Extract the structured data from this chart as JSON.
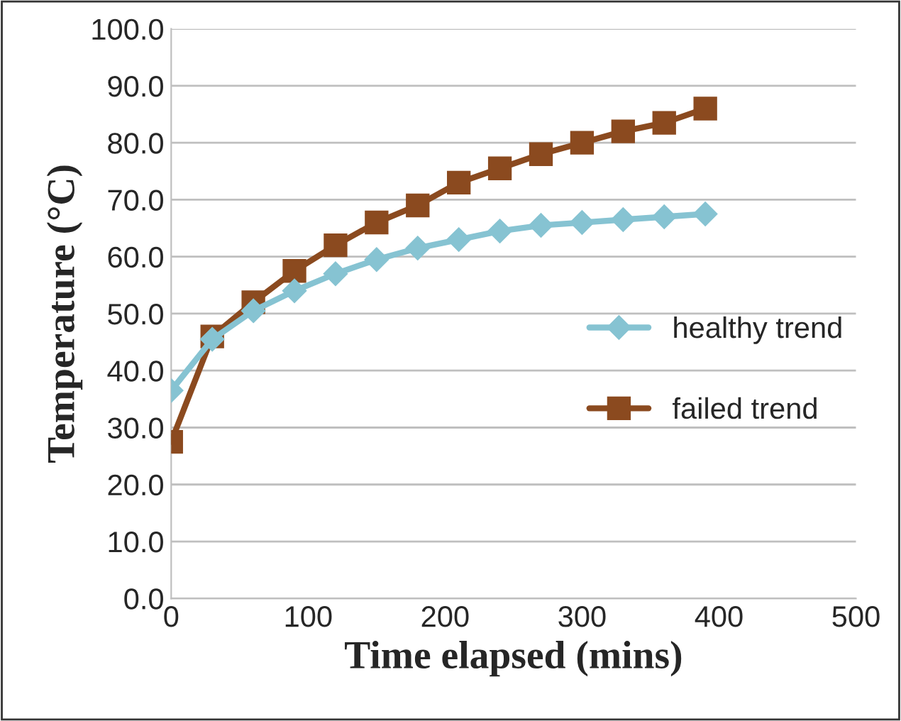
{
  "chart_data": {
    "type": "line",
    "xlabel": "Time elapsed (mins)",
    "ylabel": "Temperature (°C)",
    "xlim": [
      0,
      500
    ],
    "xticks": [
      0,
      100,
      200,
      300,
      400,
      500
    ],
    "ylim": [
      0,
      100
    ],
    "yticks": [
      {
        "value": 0,
        "label": "0.0"
      },
      {
        "value": 10,
        "label": "10.0"
      },
      {
        "value": 20,
        "label": "20.0"
      },
      {
        "value": 30,
        "label": "30.0"
      },
      {
        "value": 40,
        "label": "40.0"
      },
      {
        "value": 50,
        "label": "50.0"
      },
      {
        "value": 60,
        "label": "60.0"
      },
      {
        "value": 70,
        "label": "70.0"
      },
      {
        "value": 80,
        "label": "80.0"
      },
      {
        "value": 90,
        "label": "90.0"
      },
      {
        "value": 100,
        "label": "100.0"
      }
    ],
    "grid": "y",
    "legend": "right",
    "series": [
      {
        "name": "healthy trend",
        "color": "#86c3d2",
        "marker": "diamond",
        "x": [
          0,
          30,
          60,
          90,
          120,
          150,
          180,
          210,
          240,
          270,
          300,
          330,
          360,
          390
        ],
        "values": [
          36.5,
          45.5,
          50.5,
          54,
          57,
          59.5,
          61.5,
          63,
          64.5,
          65.5,
          66,
          66.5,
          67,
          67.5
        ]
      },
      {
        "name": "failed trend",
        "color": "#8b4a1f",
        "marker": "square",
        "x": [
          0,
          30,
          60,
          90,
          120,
          150,
          180,
          210,
          240,
          270,
          300,
          330,
          360,
          390
        ],
        "values": [
          27.5,
          46,
          52,
          57.5,
          62,
          66,
          69,
          73,
          75.5,
          78,
          80,
          82,
          83.5,
          86
        ]
      }
    ]
  }
}
